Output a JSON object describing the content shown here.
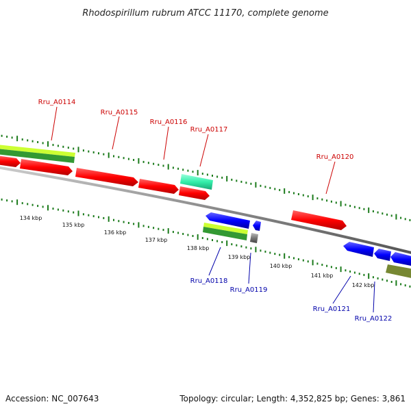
{
  "title": "Rhodospirillum rubrum ATCC 11170, complete genome",
  "footer": {
    "accession": "Accession: NC_007643",
    "summary": "Topology: circular; Length: 4,352,825 bp; Genes: 3,861"
  },
  "colors": {
    "forward_gene": "#ff0000",
    "reverse_gene": "#0000ff",
    "label_forward": "#cc0000",
    "label_reverse": "#0000aa",
    "tick": "#1a7a1a",
    "backbone": "#888888",
    "cyan_feature": "#33eeaa",
    "grey_feature": "#777777",
    "lime_band": "#ccff33",
    "green_band": "#339933",
    "olive_band": "#778833"
  },
  "kbp_labels": [
    "134 kbp",
    "135 kbp",
    "136 kbp",
    "137 kbp",
    "138 kbp",
    "139 kbp",
    "140 kbp",
    "141 kbp",
    "142 kbp"
  ],
  "forward_genes": [
    {
      "id": "Rru_A0114"
    },
    {
      "id": "Rru_A0115"
    },
    {
      "id": "Rru_A0116"
    },
    {
      "id": "Rru_A0117"
    },
    {
      "id": "Rru_A0120"
    }
  ],
  "reverse_genes": [
    {
      "id": "Rru_A0118"
    },
    {
      "id": "Rru_A0119"
    },
    {
      "id": "Rru_A0121"
    },
    {
      "id": "Rru_A0122"
    }
  ]
}
